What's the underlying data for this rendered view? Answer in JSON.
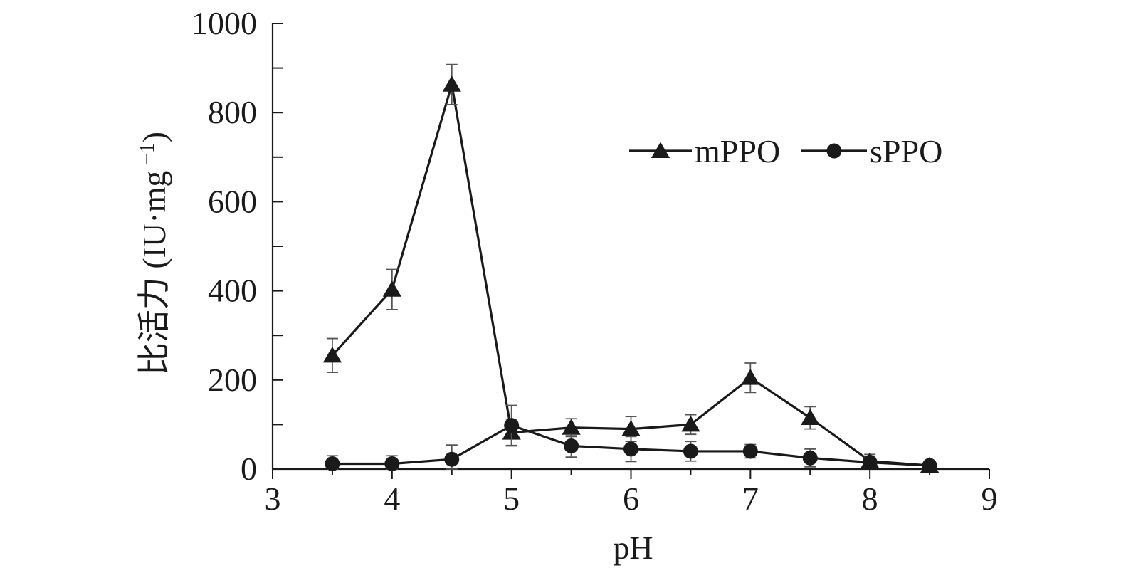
{
  "chart_data": {
    "type": "line",
    "title": "",
    "xlabel": "pH",
    "ylabel": "比活力 (IU·mg",
    "ylabel_sup": "−1",
    "ylabel_close": ")",
    "xlim": [
      3,
      9
    ],
    "ylim": [
      0,
      1000
    ],
    "x_ticks": [
      3,
      4,
      5,
      6,
      7,
      8,
      9
    ],
    "y_ticks": [
      0,
      200,
      400,
      600,
      800,
      1000
    ],
    "y_minor_step": 100,
    "grid": false,
    "legend_position": "top-right",
    "series": [
      {
        "name": "mPPO",
        "marker": "triangle",
        "x": [
          3.5,
          4,
          4.5,
          5,
          5.5,
          6,
          6.5,
          7,
          7.5,
          8,
          8.5
        ],
        "y": [
          255,
          403,
          863,
          82,
          93,
          90,
          100,
          205,
          115,
          18,
          8
        ],
        "err": [
          38,
          45,
          45,
          30,
          20,
          28,
          22,
          33,
          25,
          15,
          8
        ]
      },
      {
        "name": "sPPO",
        "marker": "circle",
        "x": [
          3.5,
          4,
          4.5,
          5,
          5.5,
          6,
          6.5,
          7,
          7.5,
          8,
          8.5
        ],
        "y": [
          12,
          12,
          22,
          98,
          52,
          45,
          40,
          40,
          25,
          15,
          8
        ],
        "err": [
          18,
          18,
          32,
          45,
          25,
          28,
          22,
          15,
          20,
          12,
          6
        ]
      }
    ]
  }
}
